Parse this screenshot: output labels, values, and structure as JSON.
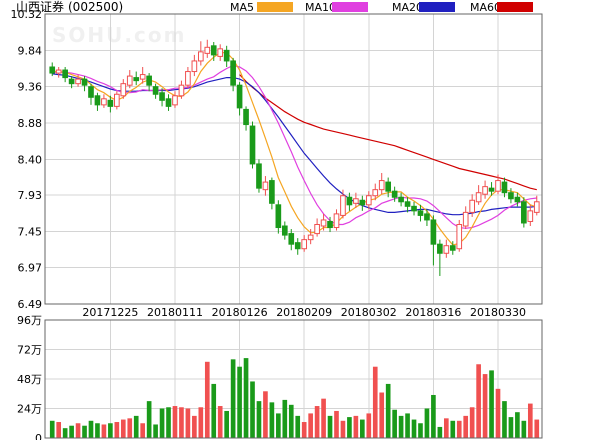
{
  "header": {
    "stock_name": "山西证券",
    "stock_code": "(002500)",
    "watermark": "SOHU.com"
  },
  "colors": {
    "up": "#f05050",
    "down": "#1a9a1a",
    "ma5": "#f5a623",
    "ma10": "#e040e0",
    "ma20": "#2020c0",
    "ma60": "#d00000",
    "grid": "#d4d4d4",
    "frame": "#666666",
    "background": "#ffffff"
  },
  "chart_data": [
    {
      "type": "candlestick",
      "title": "山西证券 (002500)",
      "legend_position": "top-right",
      "legend": [
        {
          "name": "MA5",
          "color": "#f5a623"
        },
        {
          "name": "MA10",
          "color": "#e040e0"
        },
        {
          "name": "MA20",
          "color": "#2020c0"
        },
        {
          "name": "MA60",
          "color": "#d00000"
        }
      ],
      "y_ticks": [
        "10.32",
        "9.84",
        "9.36",
        "8.88",
        "8.40",
        "7.93",
        "7.45",
        "6.97",
        "6.49"
      ],
      "ylim": [
        6.49,
        10.32
      ],
      "x_tick_labels": [
        {
          "index": 9,
          "label": "20171225"
        },
        {
          "index": 19,
          "label": "20180111"
        },
        {
          "index": 29,
          "label": "20180126"
        },
        {
          "index": 39,
          "label": "20180209"
        },
        {
          "index": 49,
          "label": "20180302"
        },
        {
          "index": 59,
          "label": "20180316"
        },
        {
          "index": 69,
          "label": "20180330"
        }
      ],
      "candles": [
        [
          9.62,
          9.54,
          9.68,
          9.5
        ],
        [
          9.54,
          9.58,
          9.62,
          9.48
        ],
        [
          9.58,
          9.48,
          9.62,
          9.42
        ],
        [
          9.46,
          9.4,
          9.5,
          9.34
        ],
        [
          9.4,
          9.46,
          9.52,
          9.36
        ],
        [
          9.46,
          9.38,
          9.5,
          9.3
        ],
        [
          9.36,
          9.22,
          9.4,
          9.12
        ],
        [
          9.24,
          9.12,
          9.28,
          9.04
        ],
        [
          9.12,
          9.2,
          9.26,
          9.08
        ],
        [
          9.18,
          9.1,
          9.24,
          9.02
        ],
        [
          9.1,
          9.26,
          9.3,
          9.06
        ],
        [
          9.24,
          9.4,
          9.46,
          9.2
        ],
        [
          9.38,
          9.5,
          9.58,
          9.34
        ],
        [
          9.48,
          9.44,
          9.56,
          9.38
        ],
        [
          9.46,
          9.52,
          9.62,
          9.4
        ],
        [
          9.5,
          9.38,
          9.54,
          9.3
        ],
        [
          9.36,
          9.26,
          9.4,
          9.2
        ],
        [
          9.28,
          9.18,
          9.34,
          9.1
        ],
        [
          9.2,
          9.1,
          9.26,
          9.04
        ],
        [
          9.12,
          9.24,
          9.3,
          9.08
        ],
        [
          9.24,
          9.38,
          9.44,
          9.2
        ],
        [
          9.38,
          9.56,
          9.62,
          9.34
        ],
        [
          9.56,
          9.7,
          9.78,
          9.5
        ],
        [
          9.7,
          9.82,
          9.96,
          9.64
        ],
        [
          9.8,
          9.88,
          9.98,
          9.74
        ],
        [
          9.9,
          9.78,
          9.95,
          9.7
        ],
        [
          9.76,
          9.86,
          9.92,
          9.7
        ],
        [
          9.84,
          9.7,
          9.9,
          9.62
        ],
        [
          9.7,
          9.38,
          9.74,
          9.3
        ],
        [
          9.38,
          9.08,
          9.42,
          8.98
        ],
        [
          9.06,
          8.86,
          9.1,
          8.78
        ],
        [
          8.84,
          8.34,
          8.9,
          8.28
        ],
        [
          8.34,
          8.02,
          8.4,
          7.96
        ],
        [
          8.0,
          8.1,
          8.18,
          7.92
        ],
        [
          8.12,
          7.82,
          8.16,
          7.74
        ],
        [
          7.8,
          7.5,
          7.86,
          7.42
        ],
        [
          7.52,
          7.4,
          7.58,
          7.34
        ],
        [
          7.42,
          7.28,
          7.48,
          7.2
        ],
        [
          7.3,
          7.22,
          7.36,
          7.14
        ],
        [
          7.22,
          7.34,
          7.4,
          7.18
        ],
        [
          7.34,
          7.4,
          7.48,
          7.28
        ],
        [
          7.42,
          7.54,
          7.62,
          7.38
        ],
        [
          7.52,
          7.6,
          7.68,
          7.46
        ],
        [
          7.58,
          7.5,
          7.64,
          7.44
        ],
        [
          7.5,
          7.68,
          7.74,
          7.46
        ],
        [
          7.66,
          7.92,
          8.0,
          7.62
        ],
        [
          7.9,
          7.8,
          7.96,
          7.72
        ],
        [
          7.82,
          7.88,
          7.96,
          7.76
        ],
        [
          7.86,
          7.8,
          7.92,
          7.72
        ],
        [
          7.8,
          7.92,
          7.98,
          7.74
        ],
        [
          7.92,
          8.0,
          8.08,
          7.86
        ],
        [
          8.0,
          8.12,
          8.22,
          7.94
        ],
        [
          8.1,
          7.98,
          8.16,
          7.9
        ],
        [
          7.98,
          7.9,
          8.04,
          7.84
        ],
        [
          7.9,
          7.84,
          7.96,
          7.78
        ],
        [
          7.84,
          7.78,
          7.9,
          7.7
        ],
        [
          7.78,
          7.72,
          7.84,
          7.66
        ],
        [
          7.72,
          7.66,
          7.8,
          7.58
        ],
        [
          7.68,
          7.6,
          7.74,
          7.52
        ],
        [
          7.6,
          7.28,
          7.66,
          7.0
        ],
        [
          7.28,
          7.16,
          7.34,
          6.86
        ],
        [
          7.16,
          7.26,
          7.34,
          7.1
        ],
        [
          7.26,
          7.2,
          7.32,
          7.14
        ],
        [
          7.22,
          7.54,
          7.6,
          7.18
        ],
        [
          7.52,
          7.7,
          7.78,
          7.48
        ],
        [
          7.7,
          7.86,
          7.94,
          7.64
        ],
        [
          7.84,
          7.96,
          8.06,
          7.8
        ],
        [
          7.94,
          8.04,
          8.12,
          7.88
        ],
        [
          8.02,
          7.98,
          8.1,
          7.92
        ],
        [
          7.98,
          8.12,
          8.2,
          7.94
        ],
        [
          8.1,
          7.96,
          8.16,
          7.9
        ],
        [
          7.96,
          7.88,
          8.02,
          7.82
        ],
        [
          7.9,
          7.84,
          7.96,
          7.78
        ],
        [
          7.84,
          7.56,
          7.9,
          7.5
        ],
        [
          7.58,
          7.72,
          7.8,
          7.52
        ],
        [
          7.7,
          7.84,
          7.92,
          7.66
        ]
      ],
      "ma5": [
        9.56,
        9.56,
        9.55,
        9.52,
        9.49,
        9.46,
        9.39,
        9.32,
        9.28,
        9.22,
        9.18,
        9.22,
        9.3,
        9.35,
        9.42,
        9.45,
        9.42,
        9.36,
        9.29,
        9.24,
        9.23,
        9.29,
        9.4,
        9.56,
        9.67,
        9.75,
        9.81,
        9.81,
        9.72,
        9.58,
        9.38,
        9.15,
        8.92,
        8.68,
        8.43,
        8.16,
        7.97,
        7.78,
        7.63,
        7.51,
        7.43,
        7.44,
        7.5,
        7.5,
        7.56,
        7.65,
        7.71,
        7.77,
        7.82,
        7.86,
        7.88,
        7.94,
        7.96,
        7.97,
        7.97,
        7.9,
        7.85,
        7.79,
        7.72,
        7.61,
        7.48,
        7.37,
        7.27,
        7.29,
        7.37,
        7.51,
        7.67,
        7.82,
        7.93,
        8.0,
        8.0,
        7.98,
        7.96,
        7.88,
        7.8,
        7.77
      ],
      "ma10": [
        9.55,
        9.55,
        9.55,
        9.54,
        9.52,
        9.5,
        9.47,
        9.43,
        9.4,
        9.36,
        9.31,
        9.28,
        9.28,
        9.29,
        9.32,
        9.31,
        9.31,
        9.32,
        9.32,
        9.34,
        9.34,
        9.35,
        9.38,
        9.42,
        9.46,
        9.49,
        9.55,
        9.6,
        9.64,
        9.62,
        9.57,
        9.48,
        9.36,
        9.22,
        9.05,
        8.88,
        8.69,
        8.5,
        8.3,
        8.12,
        7.95,
        7.8,
        7.68,
        7.59,
        7.54,
        7.54,
        7.57,
        7.63,
        7.67,
        7.72,
        7.76,
        7.82,
        7.85,
        7.88,
        7.9,
        7.89,
        7.89,
        7.88,
        7.85,
        7.79,
        7.71,
        7.63,
        7.55,
        7.5,
        7.49,
        7.5,
        7.53,
        7.57,
        7.61,
        7.66,
        7.73,
        7.78,
        7.82,
        7.86,
        7.88,
        7.89
      ],
      "ma20": [
        9.53,
        9.52,
        9.51,
        9.49,
        9.47,
        9.45,
        9.42,
        9.39,
        9.36,
        9.33,
        9.31,
        9.3,
        9.3,
        9.3,
        9.31,
        9.31,
        9.31,
        9.31,
        9.31,
        9.32,
        9.33,
        9.34,
        9.36,
        9.39,
        9.42,
        9.44,
        9.46,
        9.48,
        9.48,
        9.46,
        9.42,
        9.36,
        9.28,
        9.18,
        9.07,
        8.96,
        8.84,
        8.72,
        8.6,
        8.48,
        8.38,
        8.28,
        8.18,
        8.09,
        8.01,
        7.94,
        7.88,
        7.83,
        7.79,
        7.76,
        7.74,
        7.72,
        7.7,
        7.7,
        7.71,
        7.72,
        7.73,
        7.74,
        7.74,
        7.72,
        7.7,
        7.68,
        7.67,
        7.67,
        7.68,
        7.69,
        7.71,
        7.72,
        7.74,
        7.75,
        7.76,
        7.77,
        7.77,
        7.77,
        7.77,
        7.78
      ],
      "ma60": [
        null,
        null,
        null,
        null,
        null,
        null,
        null,
        null,
        null,
        null,
        null,
        null,
        null,
        null,
        null,
        null,
        null,
        null,
        null,
        null,
        null,
        null,
        null,
        null,
        null,
        null,
        null,
        null,
        null,
        9.52,
        9.43,
        9.35,
        9.28,
        9.21,
        9.15,
        9.09,
        9.03,
        8.98,
        8.93,
        8.89,
        8.86,
        8.83,
        8.8,
        8.78,
        8.76,
        8.74,
        8.72,
        8.7,
        8.68,
        8.66,
        8.64,
        8.62,
        8.6,
        8.58,
        8.55,
        8.52,
        8.49,
        8.46,
        8.43,
        8.4,
        8.37,
        8.34,
        8.31,
        8.28,
        8.26,
        8.24,
        8.22,
        8.2,
        8.18,
        8.16,
        8.14,
        8.11,
        8.08,
        8.05,
        8.02,
        8.0
      ]
    },
    {
      "type": "bar",
      "title": "",
      "y_ticks": [
        "96万",
        "72万",
        "48万",
        "24万",
        "0"
      ],
      "ylim": [
        0,
        96
      ],
      "unit": "万",
      "volume": [
        14,
        13,
        8,
        10,
        12,
        10,
        14,
        12,
        11,
        12,
        13,
        15,
        16,
        18,
        12,
        30,
        11,
        24,
        25,
        26,
        25,
        24,
        18,
        25,
        62,
        44,
        26,
        22,
        64,
        58,
        65,
        46,
        30,
        38,
        29,
        20,
        31,
        27,
        18,
        13,
        20,
        26,
        32,
        18,
        22,
        14,
        17,
        18,
        15,
        20,
        58,
        37,
        44,
        23,
        18,
        20,
        15,
        12,
        24,
        35,
        9,
        16,
        14,
        14,
        18,
        25,
        60,
        52,
        55,
        40,
        30,
        17,
        21,
        14,
        28,
        15
      ]
    }
  ]
}
